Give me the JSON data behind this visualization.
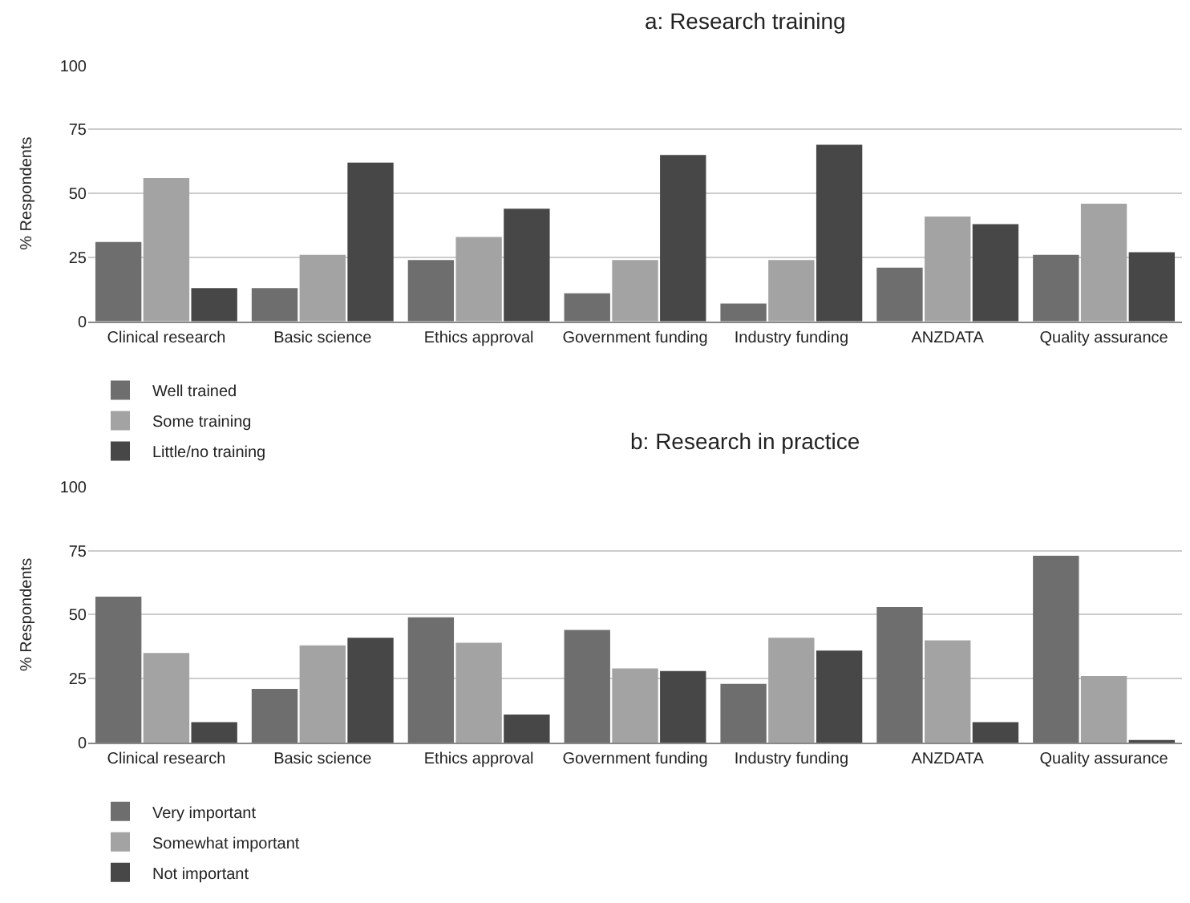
{
  "chart_data": [
    {
      "type": "bar",
      "title": "a: Research training",
      "ylabel": "% Respondents",
      "categories": [
        "Clinical research",
        "Basic science",
        "Ethics approval",
        "Government funding",
        "Industry funding",
        "ANZDATA",
        "Quality assurance"
      ],
      "series": [
        {
          "name": "Well trained",
          "color": "#6e6e6e",
          "values": [
            31,
            13,
            24,
            11,
            7,
            21,
            26
          ]
        },
        {
          "name": "Some training",
          "color": "#a3a3a3",
          "values": [
            56,
            26,
            33,
            24,
            24,
            41,
            46
          ]
        },
        {
          "name": "Little/no training",
          "color": "#474747",
          "values": [
            13,
            62,
            44,
            65,
            69,
            38,
            27
          ]
        }
      ],
      "ylim": [
        0,
        100
      ],
      "yticks": [
        0,
        25,
        50,
        75,
        100
      ],
      "grid": "y",
      "legend": "bottom left"
    },
    {
      "type": "bar",
      "title": "b: Research in practice",
      "ylabel": "% Respondents",
      "categories": [
        "Clinical research",
        "Basic science",
        "Ethics approval",
        "Government funding",
        "Industry funding",
        "ANZDATA",
        "Quality assurance"
      ],
      "series": [
        {
          "name": "Very important",
          "color": "#6e6e6e",
          "values": [
            57,
            21,
            49,
            44,
            23,
            53,
            73
          ]
        },
        {
          "name": "Somewhat important",
          "color": "#a3a3a3",
          "values": [
            35,
            38,
            39,
            29,
            41,
            40,
            26
          ]
        },
        {
          "name": "Not important",
          "color": "#474747",
          "values": [
            8,
            41,
            11,
            28,
            36,
            8,
            1
          ]
        }
      ],
      "ylim": [
        0,
        100
      ],
      "yticks": [
        0,
        25,
        50,
        75,
        100
      ],
      "grid": "y",
      "legend": "bottom left"
    }
  ]
}
